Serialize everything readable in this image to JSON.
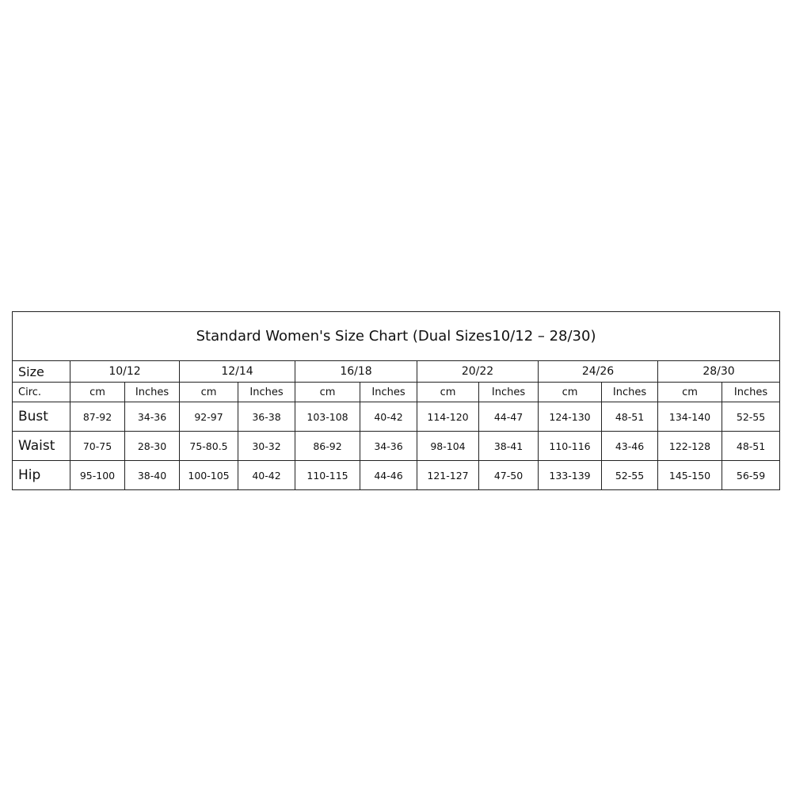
{
  "title": "Standard Women's Size Chart (Dual Sizes10/12 – 28/30)",
  "size_label": "Size",
  "circ_label": "Circ.",
  "unit_labels": [
    "cm",
    "Inches"
  ],
  "sizes": [
    "10/12",
    "12/14",
    "16/18",
    "20/22",
    "24/26",
    "28/30"
  ],
  "rows": [
    {
      "label": "Bust",
      "values": [
        "87-92",
        "34-36",
        "92-97",
        "36-38",
        "103-108",
        "40-42",
        "114-120",
        "44-47",
        "124-130",
        "48-51",
        "134-140",
        "52-55"
      ]
    },
    {
      "label": "Waist",
      "values": [
        "70-75",
        "28-30",
        "75-80.5",
        "30-32",
        "86-92",
        "34-36",
        "98-104",
        "38-41",
        "110-116",
        "43-46",
        "122-128",
        "48-51"
      ]
    },
    {
      "label": "Hip",
      "values": [
        "95-100",
        "38-40",
        "100-105",
        "40-42",
        "110-115",
        "44-46",
        "121-127",
        "47-50",
        "133-139",
        "52-55",
        "145-150",
        "56-59"
      ]
    }
  ]
}
